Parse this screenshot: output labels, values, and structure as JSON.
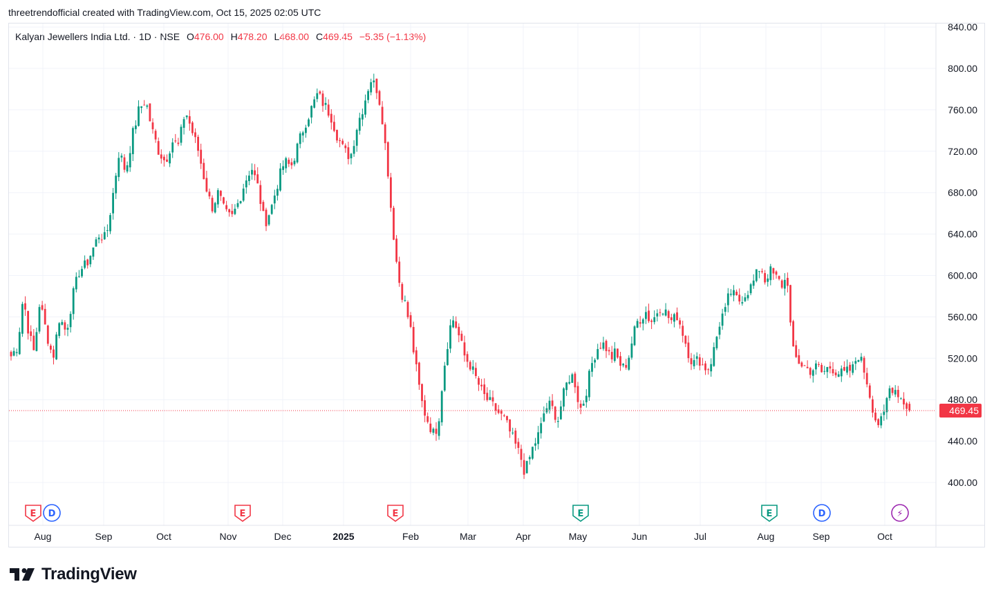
{
  "header": {
    "created_by": "threetrendofficial created with TradingView.com, Oct 15, 2025 02:05 UTC"
  },
  "legend": {
    "symbol": "Kalyan Jewellers India Ltd. · 1D · NSE",
    "open_label": "O",
    "open": "476.00",
    "high_label": "H",
    "high": "478.20",
    "low_label": "L",
    "low": "468.00",
    "close_label": "C",
    "close": "469.45",
    "change": "−5.35 (−1.13%)"
  },
  "price_tag": "469.45",
  "brand": {
    "name": "TradingView",
    "logo_icon": "tradingview-logo-icon"
  },
  "colors": {
    "up": "#089981",
    "down": "#f23645",
    "grid": "#f0f3fa",
    "text": "#131722",
    "split": "#9c27b0",
    "dividend": "#2962ff"
  },
  "chart_data": {
    "type": "candlestick",
    "title": "Kalyan Jewellers India Ltd. · 1D · NSE",
    "xlabel": "",
    "ylabel": "",
    "ylim": [
      375,
      852
    ],
    "y_ticks": [
      "840.00",
      "800.00",
      "760.00",
      "720.00",
      "680.00",
      "640.00",
      "600.00",
      "560.00",
      "520.00",
      "480.00",
      "440.00",
      "400.00"
    ],
    "x_ticks": [
      "Aug",
      "Sep",
      "Oct",
      "Nov",
      "Dec",
      "2025",
      "Feb",
      "Mar",
      "Apr",
      "May",
      "Jun",
      "Jul",
      "Aug",
      "Sep",
      "Oct"
    ],
    "bold_x_tick": "2025",
    "last_price": 469.45,
    "grid": true,
    "close_path": [
      [
        0,
        522
      ],
      [
        6,
        532
      ],
      [
        11,
        580
      ],
      [
        16,
        545
      ],
      [
        21,
        525
      ],
      [
        26,
        575
      ],
      [
        32,
        545
      ],
      [
        38,
        520
      ],
      [
        44,
        560
      ],
      [
        50,
        545
      ],
      [
        56,
        580
      ],
      [
        62,
        605
      ],
      [
        68,
        610
      ],
      [
        74,
        625
      ],
      [
        80,
        640
      ],
      [
        86,
        635
      ],
      [
        92,
        675
      ],
      [
        98,
        720
      ],
      [
        104,
        700
      ],
      [
        110,
        735
      ],
      [
        116,
        760
      ],
      [
        122,
        770
      ],
      [
        128,
        740
      ],
      [
        134,
        720
      ],
      [
        140,
        710
      ],
      [
        146,
        730
      ],
      [
        152,
        725
      ],
      [
        158,
        760
      ],
      [
        164,
        740
      ],
      [
        170,
        720
      ],
      [
        176,
        690
      ],
      [
        182,
        665
      ],
      [
        188,
        680
      ],
      [
        194,
        660
      ],
      [
        200,
        655
      ],
      [
        206,
        670
      ],
      [
        212,
        690
      ],
      [
        218,
        705
      ],
      [
        224,
        685
      ],
      [
        230,
        650
      ],
      [
        236,
        665
      ],
      [
        242,
        690
      ],
      [
        248,
        710
      ],
      [
        254,
        705
      ],
      [
        260,
        725
      ],
      [
        266,
        745
      ],
      [
        272,
        760
      ],
      [
        278,
        775
      ],
      [
        284,
        765
      ],
      [
        290,
        755
      ],
      [
        296,
        735
      ],
      [
        302,
        720
      ],
      [
        308,
        715
      ],
      [
        314,
        745
      ],
      [
        320,
        765
      ],
      [
        326,
        790
      ],
      [
        332,
        780
      ],
      [
        336,
        760
      ],
      [
        339,
        730
      ],
      [
        342,
        700
      ],
      [
        345,
        660
      ],
      [
        348,
        630
      ],
      [
        351,
        600
      ],
      [
        354,
        585
      ],
      [
        357,
        575
      ],
      [
        360,
        560
      ],
      [
        363,
        545
      ],
      [
        366,
        520
      ],
      [
        369,
        500
      ],
      [
        372,
        480
      ],
      [
        376,
        465
      ],
      [
        380,
        455
      ],
      [
        384,
        445
      ],
      [
        388,
        462
      ],
      [
        392,
        505
      ],
      [
        396,
        535
      ],
      [
        400,
        560
      ],
      [
        404,
        550
      ],
      [
        408,
        535
      ],
      [
        412,
        520
      ],
      [
        416,
        515
      ],
      [
        420,
        505
      ],
      [
        424,
        495
      ],
      [
        428,
        485
      ],
      [
        432,
        480
      ],
      [
        436,
        475
      ],
      [
        440,
        470
      ],
      [
        444,
        465
      ],
      [
        448,
        460
      ],
      [
        452,
        450
      ],
      [
        456,
        440
      ],
      [
        460,
        430
      ],
      [
        463,
        422
      ],
      [
        466,
        410
      ],
      [
        469,
        418
      ],
      [
        472,
        430
      ],
      [
        476,
        440
      ],
      [
        480,
        450
      ],
      [
        484,
        470
      ],
      [
        488,
        475
      ],
      [
        492,
        470
      ],
      [
        496,
        460
      ],
      [
        500,
        480
      ],
      [
        504,
        495
      ],
      [
        508,
        505
      ],
      [
        512,
        495
      ],
      [
        516,
        470
      ],
      [
        520,
        480
      ],
      [
        524,
        500
      ],
      [
        528,
        520
      ],
      [
        532,
        530
      ],
      [
        536,
        535
      ],
      [
        540,
        530
      ],
      [
        544,
        520
      ],
      [
        548,
        525
      ],
      [
        552,
        515
      ],
      [
        556,
        510
      ],
      [
        560,
        520
      ],
      [
        564,
        540
      ],
      [
        568,
        555
      ],
      [
        572,
        560
      ],
      [
        576,
        565
      ],
      [
        580,
        555
      ],
      [
        584,
        560
      ],
      [
        588,
        570
      ],
      [
        592,
        568
      ],
      [
        596,
        560
      ],
      [
        600,
        555
      ],
      [
        604,
        562
      ],
      [
        608,
        550
      ],
      [
        612,
        535
      ],
      [
        616,
        520
      ],
      [
        620,
        515
      ],
      [
        624,
        520
      ],
      [
        628,
        512
      ],
      [
        632,
        510
      ],
      [
        636,
        520
      ],
      [
        640,
        540
      ],
      [
        644,
        560
      ],
      [
        648,
        565
      ],
      [
        652,
        585
      ],
      [
        656,
        580
      ],
      [
        660,
        575
      ],
      [
        664,
        580
      ],
      [
        668,
        585
      ],
      [
        672,
        590
      ],
      [
        676,
        600
      ],
      [
        680,
        610
      ],
      [
        684,
        595
      ],
      [
        688,
        605
      ],
      [
        692,
        600
      ],
      [
        696,
        595
      ],
      [
        700,
        590
      ],
      [
        704,
        600
      ],
      [
        706,
        575
      ],
      [
        708,
        530
      ],
      [
        712,
        520
      ],
      [
        716,
        515
      ],
      [
        720,
        512
      ],
      [
        724,
        508
      ],
      [
        728,
        510
      ],
      [
        732,
        512
      ],
      [
        736,
        505
      ],
      [
        740,
        510
      ],
      [
        744,
        512
      ],
      [
        748,
        508
      ],
      [
        752,
        505
      ],
      [
        756,
        505
      ],
      [
        760,
        508
      ],
      [
        764,
        510
      ],
      [
        768,
        525
      ],
      [
        772,
        515
      ],
      [
        776,
        500
      ],
      [
        780,
        480
      ],
      [
        784,
        462
      ],
      [
        788,
        455
      ],
      [
        792,
        465
      ],
      [
        796,
        490
      ],
      [
        800,
        492
      ],
      [
        804,
        488
      ],
      [
        808,
        480
      ],
      [
        812,
        475
      ],
      [
        815,
        469.45
      ]
    ],
    "events": [
      {
        "type": "earnings",
        "label": "E",
        "x": 48
      },
      {
        "type": "dividend",
        "label": "D",
        "x": 75
      },
      {
        "type": "earnings",
        "label": "E",
        "x": 351
      },
      {
        "type": "earnings",
        "label": "E",
        "x": 572
      },
      {
        "type": "earnings",
        "label": "E",
        "x": 840
      },
      {
        "type": "earnings",
        "label": "E",
        "x": 1113
      },
      {
        "type": "dividend",
        "label": "D",
        "x": 1189
      },
      {
        "type": "split",
        "label": "⚡",
        "x": 1302
      }
    ]
  }
}
